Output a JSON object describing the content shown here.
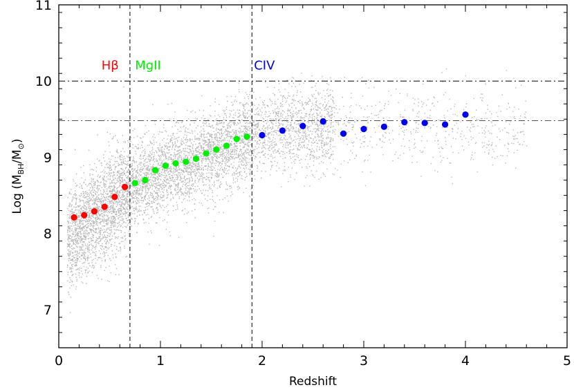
{
  "chart_data": {
    "type": "scatter",
    "xlabel": "Redshift",
    "ylabel": {
      "prefix": "Log (M",
      "sub1": "BH",
      "mid": "/M",
      "sub2": "⊙",
      "suffix": ")"
    },
    "xlim": [
      0,
      5
    ],
    "ylim": [
      6.5,
      11
    ],
    "x_ticks": [
      "0",
      "1",
      "2",
      "3",
      "4",
      "5"
    ],
    "y_ticks": [
      "7",
      "8",
      "9",
      "10",
      "11"
    ],
    "grid": false,
    "vertical_lines": [
      {
        "x": 0.7,
        "style": "dashed"
      },
      {
        "x": 1.9,
        "style": "dashed"
      }
    ],
    "horizontal_lines": [
      {
        "y": 10.0,
        "style": "dash-dot"
      },
      {
        "y": 9.48,
        "style": "dash-dot"
      }
    ],
    "line_labels": [
      {
        "text": "Hβ",
        "x": 0.42,
        "y": 10.15,
        "color": "#ff0000"
      },
      {
        "text": "MgII",
        "x": 0.75,
        "y": 10.15,
        "color": "#00ee00"
      },
      {
        "text": "CIV",
        "x": 1.92,
        "y": 10.15,
        "color": "#0000dd"
      }
    ],
    "background_cloud": {
      "color": "#b8b8b8",
      "description_free": true
    },
    "series": [
      {
        "color": "#ff0000",
        "points": [
          [
            0.15,
            8.21
          ],
          [
            0.25,
            8.24
          ],
          [
            0.35,
            8.29
          ],
          [
            0.45,
            8.35
          ],
          [
            0.55,
            8.48
          ],
          [
            0.65,
            8.61
          ]
        ]
      },
      {
        "color": "#00ee00",
        "points": [
          [
            0.75,
            8.66
          ],
          [
            0.85,
            8.7
          ],
          [
            0.95,
            8.83
          ],
          [
            1.05,
            8.89
          ],
          [
            1.15,
            8.92
          ],
          [
            1.25,
            8.94
          ],
          [
            1.35,
            8.98
          ],
          [
            1.45,
            9.05
          ],
          [
            1.55,
            9.1
          ],
          [
            1.65,
            9.15
          ],
          [
            1.75,
            9.24
          ],
          [
            1.85,
            9.27
          ]
        ]
      },
      {
        "color": "#0000ee",
        "points": [
          [
            2.0,
            9.29
          ],
          [
            2.2,
            9.35
          ],
          [
            2.4,
            9.41
          ],
          [
            2.6,
            9.47
          ],
          [
            2.8,
            9.31
          ],
          [
            3.0,
            9.37
          ],
          [
            3.2,
            9.4
          ],
          [
            3.4,
            9.46
          ],
          [
            3.6,
            9.45
          ],
          [
            3.8,
            9.43
          ],
          [
            4.0,
            9.56
          ]
        ]
      }
    ]
  }
}
